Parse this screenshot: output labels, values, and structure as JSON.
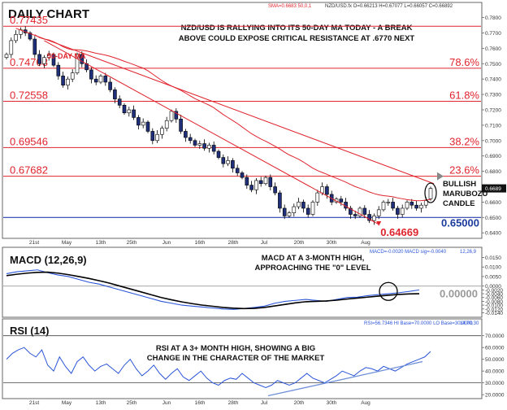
{
  "chart_data": [
    {
      "type": "candlestick",
      "title": "DAILY CHART",
      "annotation": "NZD/USD IS RALLYING INTO ITS 50-DAY MA TODAY - A BREAK ABOVE COULD EXPOSE CRITICAL RESISTANCE AT .6770 NEXT",
      "header": {
        "sma": "SMA=0.6683 50,0,1",
        "ohlc": "NZD/USD.fx O=0.66213 H=0.67077 L=0.66057 C=0.66892"
      },
      "x_tick_labels": [
        "21st",
        "May",
        "13th",
        "25th",
        "Jun",
        "16th",
        "28th",
        "Jul",
        "20th",
        "30th",
        "Aug"
      ],
      "y_tick_labels": [
        "0.7800",
        "0.7700",
        "0.7600",
        "0.7500",
        "0.7400",
        "0.7300",
        "0.7200",
        "0.7100",
        "0.7000",
        "0.6900",
        "0.6800",
        "0.6700",
        "0.6689",
        "0.6600",
        "0.6500",
        "0.6400"
      ],
      "ylim": [
        0.638,
        0.784
      ],
      "fib_levels": [
        {
          "price": 0.77435,
          "label": "0.77435",
          "pct": ""
        },
        {
          "price": 0.74703,
          "label": "0.74703",
          "pct": "78.6%"
        },
        {
          "price": 0.72558,
          "label": "0.72558",
          "pct": "61.8%"
        },
        {
          "price": 0.69546,
          "label": "0.69546",
          "pct": "38.2%"
        },
        {
          "price": 0.67682,
          "label": "0.67682",
          "pct": "23.6%"
        }
      ],
      "support": {
        "price": 0.65,
        "label": "0.65000"
      },
      "low_label": "0.64669",
      "ma_label": "50-DAY MA",
      "candle_label_1": "BULLISH",
      "candle_label_2": "MARUBOZU",
      "candle_label_3": "CANDLE",
      "current_price": "0.6689",
      "candles_close": [
        0.756,
        0.765,
        0.769,
        0.772,
        0.77,
        0.766,
        0.756,
        0.75,
        0.754,
        0.756,
        0.749,
        0.742,
        0.736,
        0.74,
        0.744,
        0.756,
        0.75,
        0.746,
        0.74,
        0.738,
        0.742,
        0.738,
        0.733,
        0.727,
        0.723,
        0.718,
        0.72,
        0.715,
        0.71,
        0.712,
        0.706,
        0.7,
        0.704,
        0.708,
        0.713,
        0.719,
        0.714,
        0.706,
        0.702,
        0.7,
        0.697,
        0.698,
        0.695,
        0.697,
        0.693,
        0.689,
        0.685,
        0.687,
        0.682,
        0.679,
        0.676,
        0.671,
        0.668,
        0.674,
        0.672,
        0.676,
        0.67,
        0.666,
        0.656,
        0.651,
        0.653,
        0.657,
        0.66,
        0.656,
        0.652,
        0.66,
        0.666,
        0.67,
        0.665,
        0.66,
        0.662,
        0.66,
        0.656,
        0.652,
        0.651,
        0.656,
        0.652,
        0.648,
        0.651,
        0.655,
        0.66,
        0.66,
        0.656,
        0.652,
        0.656,
        0.66,
        0.658,
        0.656,
        0.658,
        0.661,
        0.6689
      ]
    },
    {
      "type": "line",
      "title": "MACD (12,26,9)",
      "annotation_1": "MACD AT A 3-MONTH HIGH,",
      "annotation_2": "APPROACHING THE \"0\" LEVEL",
      "header": {
        "macd": "MACD=-0.0020 MACD sig=-0.0040",
        "params": "12,26,9"
      },
      "zero_label": "0.00000",
      "y_tick_labels": [
        "0.0150",
        "0.0100",
        "0.0050",
        "0.0000",
        "-0.0020",
        "-0.0040",
        "-0.0060",
        "-0.0080",
        "-0.0100",
        "-0.0120",
        "-0.0140"
      ],
      "ylim": [
        -0.0155,
        0.0165
      ],
      "series": [
        {
          "name": "MACD",
          "color": "#2b55d8",
          "values": [
            0.0065,
            0.0075,
            0.008,
            0.0085,
            0.007,
            0.0058,
            0.005,
            0.0035,
            0.002,
            0.001,
            -0.0005,
            -0.002,
            -0.0035,
            -0.005,
            -0.0065,
            -0.008,
            -0.009,
            -0.01,
            -0.0105,
            -0.011,
            -0.0115,
            -0.012,
            -0.0122,
            -0.0118,
            -0.0112,
            -0.0105,
            -0.009,
            -0.008,
            -0.0075,
            -0.007,
            -0.0075,
            -0.008,
            -0.007,
            -0.006,
            -0.0058,
            -0.005,
            -0.0045,
            -0.004,
            -0.0035,
            -0.0028,
            -0.002
          ]
        },
        {
          "name": "Signal",
          "color": "#000000",
          "values": [
            0.0055,
            0.0062,
            0.0068,
            0.0072,
            0.0073,
            0.0068,
            0.006,
            0.005,
            0.004,
            0.0028,
            0.0015,
            0.0,
            -0.0015,
            -0.003,
            -0.0045,
            -0.006,
            -0.0072,
            -0.0083,
            -0.0092,
            -0.01,
            -0.0106,
            -0.0112,
            -0.0116,
            -0.0118,
            -0.0117,
            -0.0112,
            -0.0104,
            -0.0096,
            -0.0088,
            -0.0082,
            -0.008,
            -0.0078,
            -0.0074,
            -0.0068,
            -0.0063,
            -0.0058,
            -0.0053,
            -0.0048,
            -0.0044,
            -0.0041,
            -0.004
          ]
        }
      ]
    },
    {
      "type": "line",
      "title": "RSI (14)",
      "annotation_1": "RSI AT A 3+ MONTH HIGH, SHOWING A BIG",
      "annotation_2": "CHANGE IN THE CHARACTER OF THE MARKET",
      "header": {
        "rsi": "RSI=56.7346 HI Base=70.0000 LO Base=30.0000",
        "params": "14,70,30"
      },
      "y_tick_labels": [
        "70.0000",
        "60.0000",
        "50.0000",
        "40.0000",
        "30.0000",
        "20.0000"
      ],
      "ylim": [
        18,
        76
      ],
      "hi_base": 70,
      "lo_base": 30,
      "series": [
        {
          "name": "RSI",
          "color": "#2b55d8",
          "values": [
            50,
            55,
            58,
            60,
            55,
            52,
            58,
            45,
            40,
            52,
            44,
            38,
            48,
            52,
            45,
            40,
            44,
            46,
            42,
            38,
            45,
            50,
            42,
            36,
            40,
            45,
            38,
            33,
            38,
            42,
            35,
            32,
            36,
            40,
            34,
            30,
            28,
            32,
            34,
            33,
            38,
            34,
            30,
            28,
            26,
            28,
            32,
            30,
            28,
            30,
            34,
            38,
            34,
            32,
            30,
            33,
            36,
            40,
            38,
            36,
            40,
            43,
            42,
            40,
            44,
            42,
            40,
            43,
            46,
            48,
            50,
            52,
            56.7
          ]
        }
      ]
    }
  ]
}
